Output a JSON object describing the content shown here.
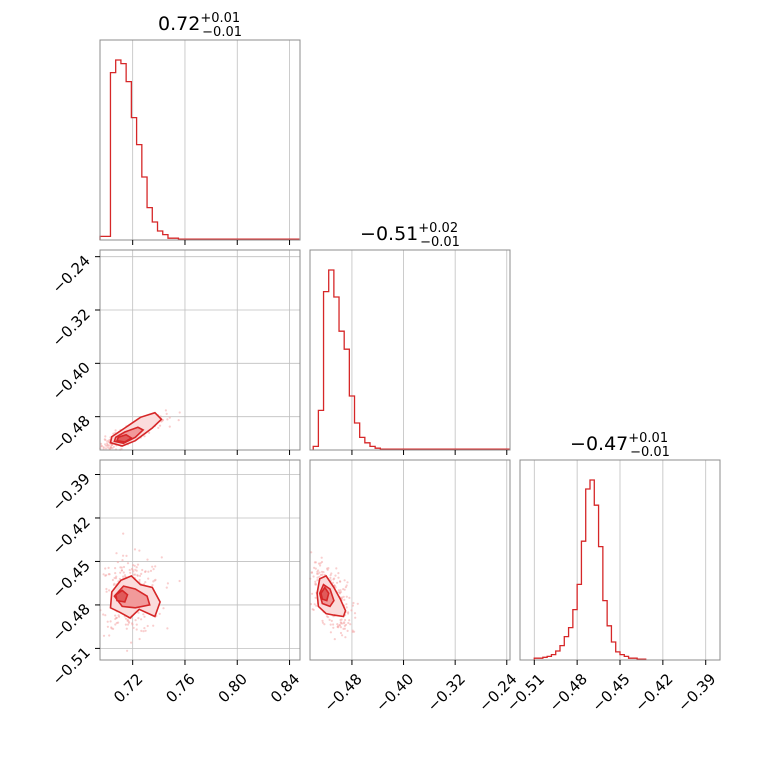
{
  "titles": [
    {
      "main": "0.72",
      "sup": "+0.01",
      "sub": "−0.01"
    },
    {
      "main": "−0.51",
      "sup": "+0.02",
      "sub": "−0.01"
    },
    {
      "main": "−0.47",
      "sup": "+0.01",
      "sub": "−0.01"
    }
  ],
  "colors": {
    "series": "#d62728",
    "points": "#f4a6a6",
    "frame": "#8c8c8c",
    "grid": "#bfbfbf"
  },
  "chart_data": [
    {
      "type": "histogram",
      "row": 0,
      "col": 0,
      "param": 0,
      "xlim": [
        0.695,
        0.848
      ],
      "bin_edges": [
        0.695,
        0.699,
        0.703,
        0.707,
        0.711,
        0.715,
        0.719,
        0.723,
        0.727,
        0.731,
        0.735,
        0.739,
        0.743,
        0.747,
        0.751,
        0.755,
        0.759,
        0.763,
        0.767,
        0.771,
        0.775,
        0.779,
        0.783,
        0.787,
        0.791,
        0.795,
        0.799,
        0.803,
        0.807,
        0.811,
        0.815,
        0.819,
        0.823,
        0.827,
        0.831,
        0.835,
        0.839,
        0.843,
        0.847
      ],
      "counts": [
        2,
        2,
        93,
        100,
        98,
        88,
        68,
        53,
        35,
        18,
        10,
        5,
        3,
        1,
        1,
        0.5,
        0.5,
        0.5,
        0.5,
        0.5,
        0.5,
        0.5,
        0.5,
        0.5,
        0.5,
        0.5,
        0.5,
        0.5,
        0.5,
        0.5,
        0.5,
        0.5,
        0.5,
        0.5,
        0.5,
        0.5,
        0.5,
        0.5
      ],
      "xticks": [
        0.72,
        0.76,
        0.8,
        0.84
      ]
    },
    {
      "type": "scatter-contour",
      "row": 1,
      "col": 0,
      "xparam": 0,
      "yparam": 1,
      "xlim": [
        0.695,
        0.848
      ],
      "ylim": [
        -0.53,
        -0.23
      ],
      "xticks": [
        0.72,
        0.76,
        0.8,
        0.84
      ],
      "yticks": [
        -0.24,
        -0.32,
        -0.4,
        -0.48
      ],
      "ytick_labels": [
        "−0.24",
        "−0.32",
        "−0.40",
        "−0.48"
      ],
      "contours": [
        [
          [
            0.703,
            -0.519
          ],
          [
            0.712,
            -0.524
          ],
          [
            0.722,
            -0.516
          ],
          [
            0.735,
            -0.497
          ],
          [
            0.742,
            -0.484
          ],
          [
            0.737,
            -0.474
          ],
          [
            0.726,
            -0.481
          ],
          [
            0.714,
            -0.497
          ],
          [
            0.704,
            -0.51
          ]
        ],
        [
          [
            0.706,
            -0.517
          ],
          [
            0.713,
            -0.52
          ],
          [
            0.722,
            -0.511
          ],
          [
            0.728,
            -0.5
          ],
          [
            0.724,
            -0.496
          ],
          [
            0.714,
            -0.503
          ],
          [
            0.707,
            -0.511
          ]
        ],
        [
          [
            0.708,
            -0.516
          ],
          [
            0.714,
            -0.518
          ],
          [
            0.719,
            -0.512
          ],
          [
            0.715,
            -0.507
          ],
          [
            0.709,
            -0.511
          ]
        ]
      ],
      "scatter": {
        "center": [
          0.716,
          -0.508
        ],
        "spread": [
          0.012,
          0.012
        ],
        "corr": 0.9,
        "n": 350
      }
    },
    {
      "type": "scatter-contour",
      "row": 2,
      "col": 0,
      "xparam": 0,
      "yparam": 2,
      "xlim": [
        0.695,
        0.848
      ],
      "ylim": [
        -0.518,
        -0.38
      ],
      "xticks": [
        0.72,
        0.76,
        0.8,
        0.84
      ],
      "xtick_labels": [
        "0.72",
        "0.76",
        "0.80",
        "0.84"
      ],
      "yticks": [
        -0.39,
        -0.42,
        -0.45,
        -0.48,
        -0.51
      ],
      "ytick_labels": [
        "−0.39",
        "−0.42",
        "−0.45",
        "−0.48",
        "−0.51"
      ],
      "contours": [
        [
          [
            0.703,
            -0.482
          ],
          [
            0.704,
            -0.471
          ],
          [
            0.711,
            -0.463
          ],
          [
            0.719,
            -0.46
          ],
          [
            0.726,
            -0.466
          ],
          [
            0.735,
            -0.468
          ],
          [
            0.741,
            -0.478
          ],
          [
            0.737,
            -0.488
          ],
          [
            0.725,
            -0.483
          ],
          [
            0.718,
            -0.489
          ],
          [
            0.71,
            -0.485
          ]
        ],
        [
          [
            0.706,
            -0.474
          ],
          [
            0.713,
            -0.467
          ],
          [
            0.722,
            -0.469
          ],
          [
            0.731,
            -0.474
          ],
          [
            0.733,
            -0.48
          ],
          [
            0.722,
            -0.482
          ],
          [
            0.712,
            -0.481
          ]
        ],
        [
          [
            0.707,
            -0.473
          ],
          [
            0.712,
            -0.47
          ],
          [
            0.716,
            -0.473
          ],
          [
            0.714,
            -0.478
          ],
          [
            0.708,
            -0.477
          ]
        ]
      ],
      "scatter": {
        "center": [
          0.718,
          -0.474
        ],
        "spread": [
          0.01,
          0.011
        ],
        "corr": 0,
        "n": 320
      }
    },
    {
      "type": "histogram",
      "row": 1,
      "col": 1,
      "param": 1,
      "xlim": [
        -0.545,
        -0.235
      ],
      "bin_edges": [
        -0.54,
        -0.532,
        -0.524,
        -0.516,
        -0.508,
        -0.5,
        -0.492,
        -0.484,
        -0.476,
        -0.468,
        -0.46,
        -0.452,
        -0.444,
        -0.436,
        -0.428,
        -0.42,
        -0.412,
        -0.404,
        -0.396,
        -0.388,
        -0.38,
        -0.372,
        -0.364,
        -0.356,
        -0.348,
        -0.34,
        -0.332,
        -0.324,
        -0.316,
        -0.308,
        -0.3,
        -0.292,
        -0.284,
        -0.276,
        -0.268,
        -0.26,
        -0.252,
        -0.244,
        -0.236
      ],
      "counts": [
        2,
        22,
        88,
        100,
        85,
        66,
        56,
        30,
        15,
        7,
        4,
        2,
        1,
        0.5,
        0.5,
        0.5,
        0.5,
        0.5,
        0.5,
        0.5,
        0.5,
        0.5,
        0.5,
        0.5,
        0.5,
        0.5,
        0.5,
        0.5,
        0.5,
        0.5,
        0.5,
        0.5,
        0.5,
        0.5,
        0.5,
        0.5,
        0.5,
        0.5
      ],
      "xticks": [
        -0.48,
        -0.4,
        -0.32,
        -0.24
      ]
    },
    {
      "type": "scatter-contour",
      "row": 2,
      "col": 1,
      "xparam": 1,
      "yparam": 2,
      "xlim": [
        -0.545,
        -0.235
      ],
      "ylim": [
        -0.518,
        -0.38
      ],
      "xticks": [
        -0.48,
        -0.4,
        -0.32,
        -0.24
      ],
      "xtick_labels": [
        "−0.48",
        "−0.40",
        "−0.32",
        "−0.24"
      ],
      "contours": [
        [
          [
            -0.534,
            -0.472
          ],
          [
            -0.53,
            -0.462
          ],
          [
            -0.52,
            -0.46
          ],
          [
            -0.508,
            -0.468
          ],
          [
            -0.498,
            -0.476
          ],
          [
            -0.49,
            -0.484
          ],
          [
            -0.493,
            -0.488
          ],
          [
            -0.508,
            -0.487
          ],
          [
            -0.52,
            -0.486
          ],
          [
            -0.532,
            -0.481
          ]
        ],
        [
          [
            -0.53,
            -0.472
          ],
          [
            -0.524,
            -0.466
          ],
          [
            -0.514,
            -0.469
          ],
          [
            -0.508,
            -0.477
          ],
          [
            -0.514,
            -0.481
          ],
          [
            -0.526,
            -0.479
          ]
        ],
        [
          [
            -0.528,
            -0.472
          ],
          [
            -0.522,
            -0.468
          ],
          [
            -0.516,
            -0.472
          ],
          [
            -0.519,
            -0.477
          ],
          [
            -0.526,
            -0.476
          ]
        ]
      ],
      "scatter": {
        "center": [
          -0.515,
          -0.474
        ],
        "spread": [
          0.014,
          0.01
        ],
        "corr": -0.55,
        "n": 320
      }
    },
    {
      "type": "histogram",
      "row": 2,
      "col": 2,
      "param": 2,
      "xlim": [
        -0.52,
        -0.38
      ],
      "bin_edges": [
        -0.51,
        -0.507,
        -0.504,
        -0.501,
        -0.498,
        -0.495,
        -0.492,
        -0.489,
        -0.486,
        -0.483,
        -0.48,
        -0.477,
        -0.474,
        -0.471,
        -0.468,
        -0.465,
        -0.462,
        -0.459,
        -0.456,
        -0.453,
        -0.45,
        -0.447,
        -0.444,
        -0.441,
        -0.438,
        -0.435,
        -0.432
      ],
      "counts": [
        1,
        1,
        1.5,
        2,
        3,
        5,
        8,
        13,
        18,
        28,
        42,
        66,
        95,
        100,
        86,
        63,
        33,
        19,
        10,
        4.5,
        3,
        2,
        1,
        1,
        0.5,
        0.5
      ],
      "xticks": [
        -0.51,
        -0.48,
        -0.45,
        -0.42,
        -0.39
      ],
      "xtick_labels": [
        "−0.51",
        "−0.48",
        "−0.45",
        "−0.42",
        "−0.39"
      ]
    }
  ]
}
